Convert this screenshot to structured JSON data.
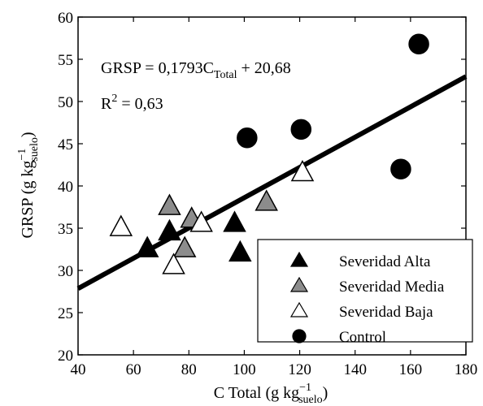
{
  "chart_data": {
    "type": "scatter",
    "xlabel": {
      "main": "C Total (g kg",
      "sup": "−1",
      "sub": "suelo",
      "close": ")"
    },
    "ylabel": {
      "main": "GRSP (g kg",
      "sup": "−1",
      "sub": "suelo",
      "close": ")"
    },
    "xlim": [
      40,
      180
    ],
    "ylim": [
      20,
      60
    ],
    "xticks": [
      40,
      60,
      80,
      100,
      120,
      140,
      160,
      180
    ],
    "yticks": [
      20,
      25,
      30,
      35,
      40,
      45,
      50,
      55,
      60
    ],
    "grid": false,
    "legend_position": "bottom-right",
    "annotations": {
      "equation": {
        "lhs": "GRSP = 0,1793C",
        "sub": "Total",
        "rhs": " + 20,68"
      },
      "r2": {
        "base": "R",
        "sup": "2",
        "rest": " = 0,63"
      }
    },
    "regression": {
      "slope": 0.1793,
      "intercept": 20.68,
      "x_range": [
        40,
        180
      ]
    },
    "series": [
      {
        "name": "Severidad Alta",
        "marker": "triangle",
        "color": "#000000",
        "points": [
          [
            65,
            32.5
          ],
          [
            73,
            34.5
          ],
          [
            96.5,
            35.5
          ],
          [
            98.5,
            32
          ]
        ]
      },
      {
        "name": "Severidad Media",
        "marker": "triangle",
        "color": "#8c8c8c",
        "points": [
          [
            73,
            37.5
          ],
          [
            78.5,
            32.5
          ],
          [
            81,
            36
          ],
          [
            108,
            38
          ]
        ]
      },
      {
        "name": "Severidad Baja",
        "marker": "triangle",
        "color": "#ffffff",
        "points": [
          [
            55.5,
            35
          ],
          [
            74.5,
            30.5
          ],
          [
            84.5,
            35.5
          ],
          [
            121,
            41.5
          ]
        ]
      },
      {
        "name": "Control",
        "marker": "circle",
        "color": "#000000",
        "points": [
          [
            101,
            45.7
          ],
          [
            120.5,
            46.7
          ],
          [
            156.5,
            42
          ],
          [
            163,
            56.8
          ]
        ]
      }
    ]
  }
}
